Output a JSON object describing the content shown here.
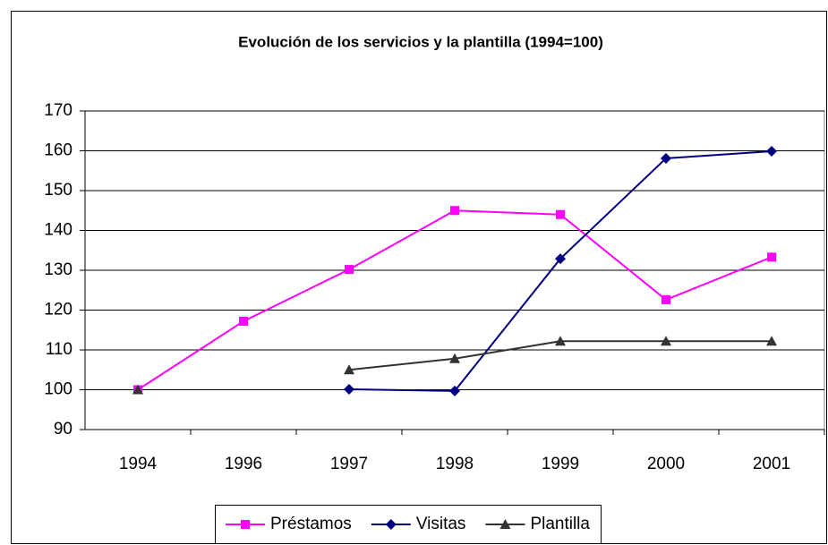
{
  "chart_data": {
    "type": "line",
    "title": "Evolución de los servicios y la plantilla (1994=100)",
    "categories": [
      "1994",
      "1996",
      "1997",
      "1998",
      "1999",
      "2000",
      "2001"
    ],
    "series": [
      {
        "name": "Préstamos",
        "color": "#ff00ff",
        "marker": "square",
        "values": [
          100,
          117.2,
          130.2,
          145,
          144,
          122.6,
          133.3
        ]
      },
      {
        "name": "Visitas",
        "color": "#000080",
        "marker": "diamond",
        "values": [
          null,
          null,
          100.1,
          99.7,
          132.9,
          158.1,
          159.9
        ]
      },
      {
        "name": "Plantilla",
        "color": "#333333",
        "marker": "triangle",
        "values": [
          100,
          null,
          105,
          107.8,
          112.2,
          112.2,
          112.2
        ]
      }
    ],
    "ylim": [
      90,
      170
    ],
    "yticks": [
      90,
      100,
      110,
      120,
      130,
      140,
      150,
      160,
      170
    ],
    "grid": true,
    "legend": "bottom"
  }
}
